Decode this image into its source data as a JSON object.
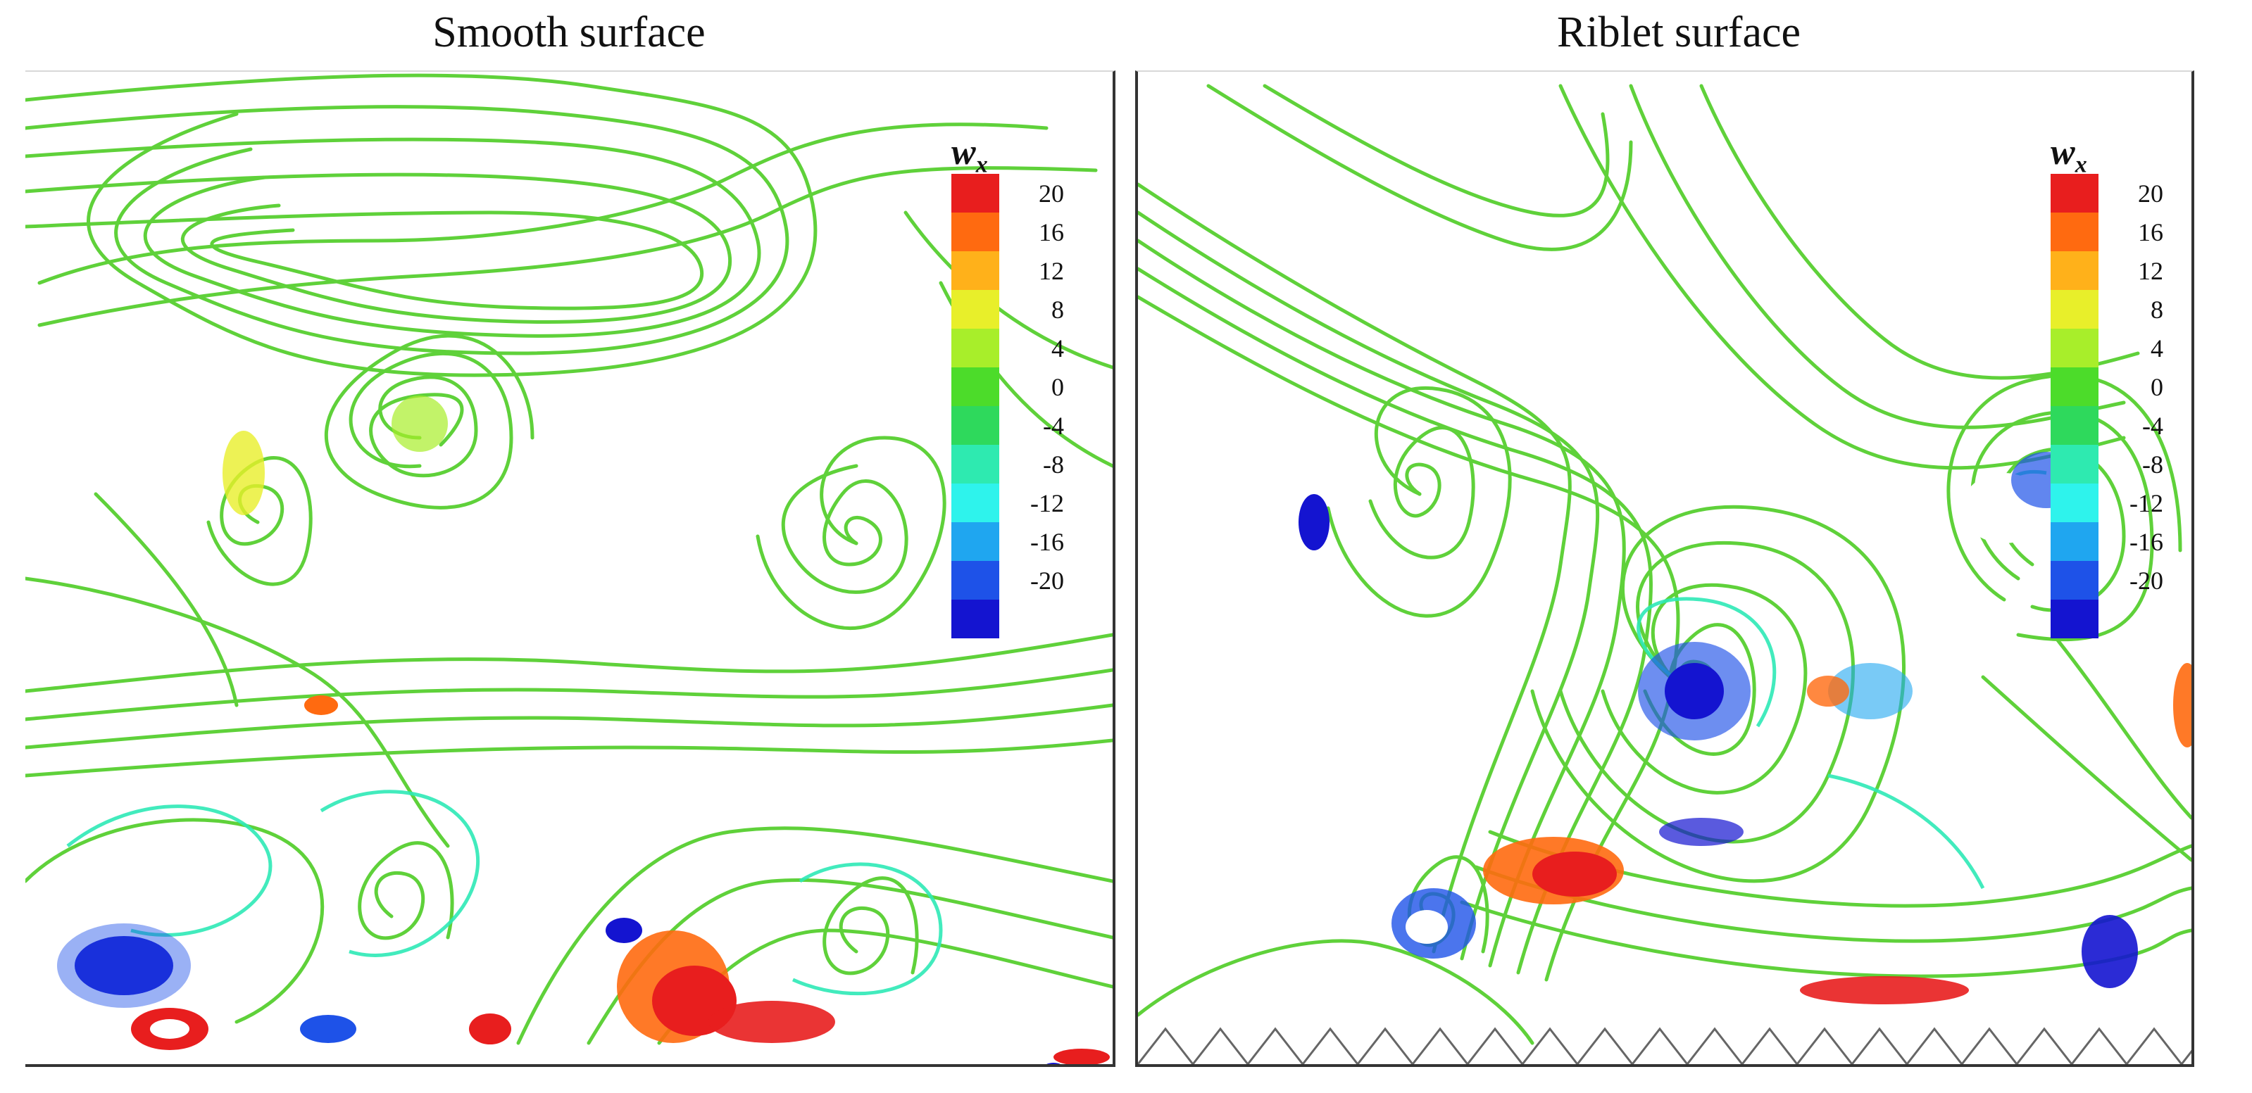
{
  "figure": {
    "panels": [
      {
        "title": "Smooth surface"
      },
      {
        "title": "Riblet surface"
      }
    ],
    "legend": {
      "variable": "w",
      "subscript": "x",
      "ticks": [
        "20",
        "16",
        "12",
        "8",
        "4",
        "0",
        "-4",
        "-8",
        "-12",
        "-16",
        "-20"
      ],
      "colors": [
        "#e81e1e",
        "#ff6a10",
        "#ffb11a",
        "#e8ef2a",
        "#a8ee2a",
        "#4cdc2a",
        "#2ed95c",
        "#2eeab0",
        "#2ef3ec",
        "#1fa6f0",
        "#1e52e8",
        "#1414d0"
      ]
    }
  }
}
